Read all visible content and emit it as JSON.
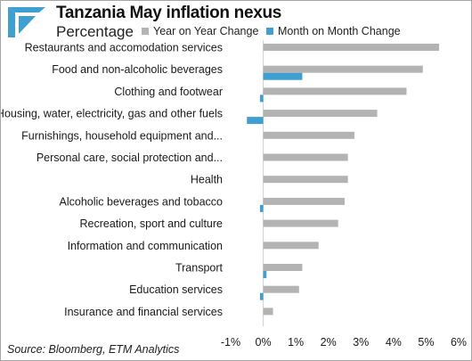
{
  "header": {
    "title": "Tanzania May inflation nexus",
    "subtitle": "Percentage"
  },
  "source": "Source: Bloomberg, ETM Analytics",
  "colors": {
    "year_on_year": "#b3b3b3",
    "month_on_month": "#3f9fd1",
    "logo": "#3f9fd1"
  },
  "chart_data": {
    "type": "bar",
    "orientation": "horizontal",
    "categories": [
      "Restaurants and accomodation services",
      "Food and non-alcoholic beverages",
      "Clothing and footwear",
      "Housing, water, electricity, gas and other fuels",
      "Furnishings, household equipment and...",
      "Personal care, social protection and...",
      "Health",
      "Alcoholic beverages and tobacco",
      "Recreation, sport and culture",
      "Information and communication",
      "Transport",
      "Education services",
      "Insurance and financial services"
    ],
    "series": [
      {
        "name": "Year on Year Change",
        "values": [
          5.4,
          4.9,
          4.4,
          3.5,
          2.8,
          2.6,
          2.6,
          2.5,
          2.3,
          1.7,
          1.2,
          1.1,
          0.3
        ]
      },
      {
        "name": "Month on Month Change",
        "values": [
          0.0,
          1.2,
          -0.1,
          -0.5,
          0.0,
          0.0,
          0.0,
          -0.1,
          0.0,
          0.0,
          0.1,
          -0.1,
          0.0
        ]
      }
    ],
    "xlim": [
      -1,
      6
    ],
    "xticks": [
      "-1%",
      "0%",
      "1%",
      "2%",
      "3%",
      "4%",
      "5%",
      "6%"
    ],
    "xlabel": "",
    "ylabel": "",
    "legend": "top",
    "grid": false
  }
}
